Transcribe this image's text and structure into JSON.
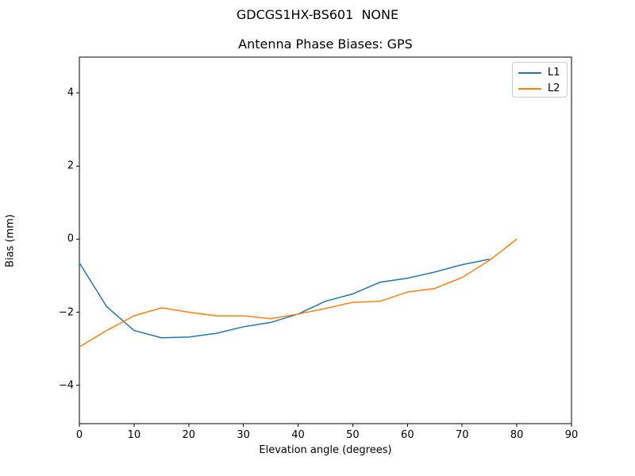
{
  "figure": {
    "suptitle": "GDCGS1HX-BS601  NONE",
    "background": "#ffffff"
  },
  "chart_data": {
    "type": "line",
    "title": "Antenna Phase Biases: GPS",
    "xlabel": "Elevation angle (degrees)",
    "ylabel": "Bias (mm)",
    "xlim": [
      0,
      90
    ],
    "ylim": [
      -5.05,
      4.98
    ],
    "xticks": [
      0,
      10,
      20,
      30,
      40,
      50,
      60,
      70,
      80,
      90
    ],
    "yticks": [
      4,
      2,
      0,
      -2,
      -4
    ],
    "xticklabels": [
      "0",
      "10",
      "20",
      "30",
      "40",
      "50",
      "60",
      "70",
      "80",
      "90"
    ],
    "yticklabels": [
      "4",
      "2",
      "0",
      "−2",
      "−4"
    ],
    "grid": false,
    "legend_position": "upper right",
    "line_width": 1.5,
    "series": [
      {
        "name": "L1",
        "color": "#1f77b4",
        "x": [
          0,
          5,
          10,
          15,
          20,
          25,
          30,
          35,
          40,
          45,
          50,
          55,
          60,
          65,
          70,
          75
        ],
        "y": [
          -0.65,
          -1.85,
          -2.5,
          -2.7,
          -2.68,
          -2.58,
          -2.4,
          -2.28,
          -2.05,
          -1.7,
          -1.5,
          -1.18,
          -1.07,
          -0.9,
          -0.7,
          -0.55
        ]
      },
      {
        "name": "L2",
        "color": "#ff7f0e",
        "x": [
          0,
          5,
          10,
          15,
          20,
          25,
          30,
          35,
          40,
          45,
          50,
          55,
          60,
          65,
          70,
          75,
          80
        ],
        "y": [
          -2.95,
          -2.5,
          -2.1,
          -1.88,
          -2.0,
          -2.1,
          -2.1,
          -2.18,
          -2.05,
          -1.9,
          -1.73,
          -1.7,
          -1.45,
          -1.35,
          -1.05,
          -0.58,
          0.0
        ]
      }
    ]
  }
}
